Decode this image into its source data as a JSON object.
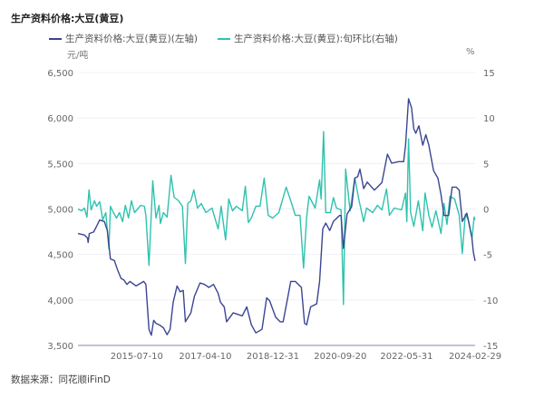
{
  "title": "生产资料价格:大豆(黄豆)",
  "footer": "数据来源：同花顺iFinD",
  "chart_data": {
    "type": "line",
    "title": "生产资料价格:大豆(黄豆)",
    "left_unit": "元/吨",
    "right_unit": "%",
    "grid": true,
    "legend_placement": "top",
    "xlim": [
      "2014-01-08",
      "2024-02-29"
    ],
    "x_ticks": [
      "2015-07-10",
      "2017-04-10",
      "2018-12-31",
      "2020-09-20",
      "2022-05-31",
      "2024-02-29"
    ],
    "left_ylim": [
      3500,
      6500
    ],
    "left_ticks": [
      "3,500",
      "4,000",
      "4,500",
      "5,000",
      "5,500",
      "6,000",
      "6,500"
    ],
    "right_ylim": [
      -15,
      15
    ],
    "right_ticks": [
      "-15",
      "-10",
      "-5",
      "0",
      "5",
      "10",
      "15"
    ],
    "series": [
      {
        "name": "生产资料价格:大豆(黄豆)(左轴)",
        "axis": "left",
        "color": "#3b4591",
        "points": [
          [
            "2014-01-08",
            4730
          ],
          [
            "2014-03-09",
            4714
          ],
          [
            "2014-04-07",
            4681
          ],
          [
            "2014-04-13",
            4632
          ],
          [
            "2014-04-24",
            4730
          ],
          [
            "2014-06-03",
            4747
          ],
          [
            "2014-07-01",
            4812
          ],
          [
            "2014-07-29",
            4878
          ],
          [
            "2014-09-11",
            4862
          ],
          [
            "2014-10-09",
            4763
          ],
          [
            "2014-11-07",
            4451
          ],
          [
            "2014-12-13",
            4434
          ],
          [
            "2015-01-11",
            4335
          ],
          [
            "2015-02-14",
            4237
          ],
          [
            "2015-03-12",
            4220
          ],
          [
            "2015-04-10",
            4171
          ],
          [
            "2015-05-08",
            4204
          ],
          [
            "2015-07-04",
            4154
          ],
          [
            "2015-09-13",
            4204
          ],
          [
            "2015-10-03",
            4171
          ],
          [
            "2015-11-01",
            3677
          ],
          [
            "2015-11-23",
            3612
          ],
          [
            "2015-12-15",
            3776
          ],
          [
            "2016-01-05",
            3743
          ],
          [
            "2016-02-03",
            3727
          ],
          [
            "2016-03-15",
            3694
          ],
          [
            "2016-04-18",
            3618
          ],
          [
            "2016-05-16",
            3677
          ],
          [
            "2016-06-14",
            3974
          ],
          [
            "2016-07-20",
            4154
          ],
          [
            "2016-08-18",
            4089
          ],
          [
            "2016-09-16",
            4105
          ],
          [
            "2016-10-06",
            3760
          ],
          [
            "2016-11-26",
            3858
          ],
          [
            "2016-12-29",
            4039
          ],
          [
            "2017-02-19",
            4187
          ],
          [
            "2017-04-01",
            4171
          ],
          [
            "2017-05-13",
            4138
          ],
          [
            "2017-06-25",
            4171
          ],
          [
            "2017-08-07",
            4072
          ],
          [
            "2017-08-29",
            3974
          ],
          [
            "2017-10-03",
            3924
          ],
          [
            "2017-10-25",
            3760
          ],
          [
            "2017-12-26",
            3858
          ],
          [
            "2018-03-20",
            3825
          ],
          [
            "2018-05-02",
            3924
          ],
          [
            "2018-06-13",
            3727
          ],
          [
            "2018-07-25",
            3638
          ],
          [
            "2018-09-21",
            3677
          ],
          [
            "2018-11-03",
            4023
          ],
          [
            "2018-12-01",
            3990
          ],
          [
            "2019-01-26",
            3809
          ],
          [
            "2019-03-09",
            3760
          ],
          [
            "2019-04-06",
            3760
          ],
          [
            "2019-05-18",
            4023
          ],
          [
            "2019-06-16",
            4204
          ],
          [
            "2019-07-28",
            4204
          ],
          [
            "2019-08-26",
            4171
          ],
          [
            "2019-09-23",
            4138
          ],
          [
            "2019-10-22",
            3743
          ],
          [
            "2019-11-11",
            3727
          ],
          [
            "2019-12-18",
            3924
          ],
          [
            "2020-02-13",
            3957
          ],
          [
            "2020-03-11",
            4204
          ],
          [
            "2020-04-09",
            4780
          ],
          [
            "2020-05-07",
            4845
          ],
          [
            "2020-06-13",
            4763
          ],
          [
            "2020-07-17",
            4862
          ],
          [
            "2020-09-12",
            4928
          ],
          [
            "2020-09-27",
            4928
          ],
          [
            "2020-10-19",
            4566
          ],
          [
            "2020-11-22",
            4944
          ],
          [
            "2021-01-04",
            5026
          ],
          [
            "2021-02-02",
            5339
          ],
          [
            "2021-03-01",
            5355
          ],
          [
            "2021-03-22",
            5438
          ],
          [
            "2021-04-26",
            5224
          ],
          [
            "2021-05-29",
            5296
          ],
          [
            "2021-08-03",
            5207
          ],
          [
            "2021-09-01",
            5240
          ],
          [
            "2021-10-13",
            5290
          ],
          [
            "2021-12-03",
            5602
          ],
          [
            "2022-01-12",
            5503
          ],
          [
            "2022-03-16",
            5520
          ],
          [
            "2022-05-04",
            5520
          ],
          [
            "2022-05-21",
            5701
          ],
          [
            "2022-06-18",
            6211
          ],
          [
            "2022-07-16",
            6112
          ],
          [
            "2022-08-06",
            5882
          ],
          [
            "2022-08-25",
            5832
          ],
          [
            "2022-09-23",
            5915
          ],
          [
            "2022-10-29",
            5701
          ],
          [
            "2022-11-27",
            5816
          ],
          [
            "2022-12-25",
            5701
          ],
          [
            "2023-02-07",
            5421
          ],
          [
            "2023-03-19",
            5339
          ],
          [
            "2023-04-17",
            5158
          ],
          [
            "2023-05-15",
            4928
          ],
          [
            "2023-06-27",
            4928
          ],
          [
            "2023-07-30",
            5240
          ],
          [
            "2023-09-06",
            5240
          ],
          [
            "2023-10-04",
            5207
          ],
          [
            "2023-11-02",
            4862
          ],
          [
            "2023-12-14",
            4954
          ],
          [
            "2024-01-30",
            4681
          ],
          [
            "2024-02-12",
            4533
          ],
          [
            "2024-02-29",
            4428
          ]
        ]
      },
      {
        "name": "生产资料价格:大豆(黄豆):旬环比(右轴)",
        "axis": "right",
        "color": "#2fc2ae",
        "points": [
          [
            "2014-01-08",
            0
          ],
          [
            "2014-02-12",
            -0.2
          ],
          [
            "2014-03-09",
            0.1
          ],
          [
            "2014-04-02",
            -0.9
          ],
          [
            "2014-04-21",
            2.1
          ],
          [
            "2014-05-11",
            -0.1
          ],
          [
            "2014-06-11",
            0.9
          ],
          [
            "2014-07-01",
            0.3
          ],
          [
            "2014-07-29",
            0.8
          ],
          [
            "2014-08-13",
            -0.2
          ],
          [
            "2014-08-27",
            -1.2
          ],
          [
            "2014-09-25",
            -0.4
          ],
          [
            "2014-10-23",
            -4.4
          ],
          [
            "2014-11-07",
            0.3
          ],
          [
            "2014-12-05",
            -0.4
          ],
          [
            "2015-01-02",
            -1.0
          ],
          [
            "2015-01-30",
            -0.4
          ],
          [
            "2015-02-28",
            -1.4
          ],
          [
            "2015-03-26",
            0.4
          ],
          [
            "2015-04-24",
            -1.0
          ],
          [
            "2015-05-22",
            0.9
          ],
          [
            "2015-06-20",
            -0.4
          ],
          [
            "2015-08-16",
            0.4
          ],
          [
            "2015-09-19",
            0.3
          ],
          [
            "2015-10-03",
            -0.7
          ],
          [
            "2015-11-01",
            -6.2
          ],
          [
            "2015-12-07",
            3.1
          ],
          [
            "2016-01-05",
            -1.0
          ],
          [
            "2016-02-03",
            0.4
          ],
          [
            "2016-02-16",
            -1.6
          ],
          [
            "2016-03-15",
            -0.4
          ],
          [
            "2016-04-18",
            -0.9
          ],
          [
            "2016-05-25",
            3.7
          ],
          [
            "2016-06-22",
            1.3
          ],
          [
            "2016-08-04",
            0.9
          ],
          [
            "2016-09-08",
            0.3
          ],
          [
            "2016-10-06",
            -6.0
          ],
          [
            "2016-10-28",
            0.6
          ],
          [
            "2016-11-26",
            0.9
          ],
          [
            "2016-12-24",
            2.1
          ],
          [
            "2017-01-27",
            0.1
          ],
          [
            "2017-03-03",
            0.6
          ],
          [
            "2017-04-15",
            -0.4
          ],
          [
            "2017-06-11",
            0.1
          ],
          [
            "2017-08-07",
            -2.2
          ],
          [
            "2017-09-04",
            0.3
          ],
          [
            "2017-10-16",
            -3.4
          ],
          [
            "2017-11-14",
            1.1
          ],
          [
            "2017-12-20",
            -0.2
          ],
          [
            "2018-01-24",
            0.3
          ],
          [
            "2018-03-20",
            -0.2
          ],
          [
            "2018-04-18",
            2.5
          ],
          [
            "2018-05-16",
            -1.5
          ],
          [
            "2018-06-13",
            -1.0
          ],
          [
            "2018-07-25",
            0.3
          ],
          [
            "2018-09-02",
            0.3
          ],
          [
            "2018-10-11",
            3.4
          ],
          [
            "2018-11-17",
            -0.7
          ],
          [
            "2018-12-29",
            -1.0
          ],
          [
            "2019-02-24",
            -0.4
          ],
          [
            "2019-05-04",
            2.4
          ],
          [
            "2019-06-16",
            0.9
          ],
          [
            "2019-07-28",
            -0.7
          ],
          [
            "2019-09-10",
            -0.7
          ],
          [
            "2019-10-13",
            -6.5
          ],
          [
            "2019-11-11",
            -0.9
          ],
          [
            "2019-12-04",
            1.4
          ],
          [
            "2020-01-29",
            0.1
          ],
          [
            "2020-03-11",
            3.2
          ],
          [
            "2020-03-25",
            1.1
          ],
          [
            "2020-04-17",
            8.5
          ],
          [
            "2020-05-07",
            -0.4
          ],
          [
            "2020-06-19",
            -0.4
          ],
          [
            "2020-07-17",
            1.25
          ],
          [
            "2020-08-15",
            0.1
          ],
          [
            "2020-09-27",
            -0.1
          ],
          [
            "2020-10-19",
            -10.5
          ],
          [
            "2020-11-08",
            4.4
          ],
          [
            "2020-12-20",
            -0.2
          ],
          [
            "2021-02-02",
            3.4
          ],
          [
            "2021-03-14",
            0.9
          ],
          [
            "2021-04-26",
            -1.4
          ],
          [
            "2021-05-23",
            0.1
          ],
          [
            "2021-07-19",
            -0.4
          ],
          [
            "2021-09-01",
            0.4
          ],
          [
            "2021-10-13",
            -0.1
          ],
          [
            "2021-11-25",
            2.2
          ],
          [
            "2021-12-22",
            -0.7
          ],
          [
            "2022-02-05",
            0.1
          ],
          [
            "2022-04-14",
            -0.1
          ],
          [
            "2022-05-21",
            1.75
          ],
          [
            "2022-06-02",
            -1.4
          ],
          [
            "2022-06-18",
            7.7
          ],
          [
            "2022-07-08",
            -0.4
          ],
          [
            "2022-08-06",
            -1.9
          ],
          [
            "2022-09-18",
            0.9
          ],
          [
            "2022-10-29",
            -2.4
          ],
          [
            "2022-11-19",
            1.75
          ],
          [
            "2022-12-25",
            -0.7
          ],
          [
            "2023-01-23",
            -2.0
          ],
          [
            "2023-03-01",
            -0.2
          ],
          [
            "2023-04-17",
            -2.7
          ],
          [
            "2023-05-15",
            0.6
          ],
          [
            "2023-06-12",
            -1.7
          ],
          [
            "2023-07-10",
            1.4
          ],
          [
            "2023-08-22",
            1.1
          ],
          [
            "2023-10-04",
            -0.7
          ],
          [
            "2023-11-02",
            -4.9
          ],
          [
            "2023-11-30",
            -0.6
          ],
          [
            "2023-12-28",
            -1.2
          ],
          [
            "2024-02-01",
            -3.2
          ],
          [
            "2024-02-20",
            -0.9
          ],
          [
            "2024-02-29",
            -1.2
          ]
        ]
      }
    ]
  }
}
